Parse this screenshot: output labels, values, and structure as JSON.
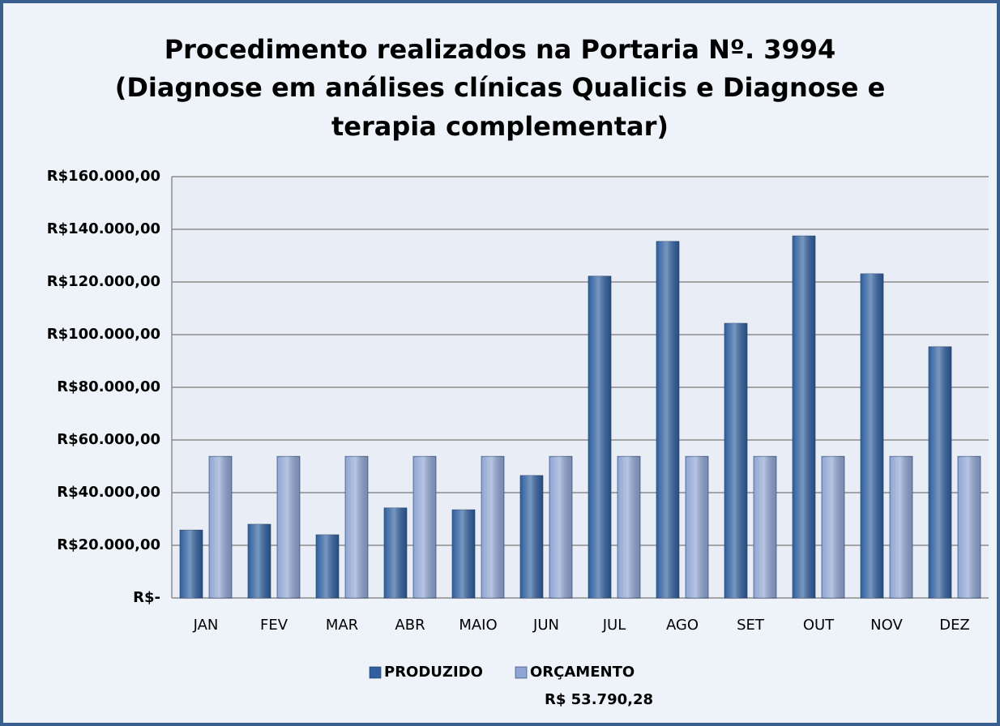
{
  "chart_data": {
    "type": "bar",
    "title": [
      "Procedimento realizados na Portaria Nº. 3994",
      "(Diagnose em análises clínicas Qualicis e Diagnose e",
      "terapia complementar)"
    ],
    "categories": [
      "JAN",
      "FEV",
      "MAR",
      "ABR",
      "MAIO",
      "JUN",
      "JUL",
      "AGO",
      "SET",
      "OUT",
      "NOV",
      "DEZ"
    ],
    "series": [
      {
        "name": "PRODUZIDO",
        "color": "#2f5f9e",
        "values": [
          25800,
          28000,
          24000,
          34200,
          33500,
          46500,
          122200,
          135400,
          104300,
          137500,
          123100,
          95400
        ]
      },
      {
        "name": "ORÇAMENTO",
        "legend_sublabel": "R$ 53.790,28",
        "color": "#8fa5d3",
        "values": [
          53790.28,
          53790.28,
          53790.28,
          53790.28,
          53790.28,
          53790.28,
          53790.28,
          53790.28,
          53790.28,
          53790.28,
          53790.28,
          53790.28
        ]
      }
    ],
    "ylim": [
      0,
      160000
    ],
    "yticks": [
      {
        "value": 0,
        "label": "R$-"
      },
      {
        "value": 20000,
        "label": "R$20.000,00"
      },
      {
        "value": 40000,
        "label": "R$40.000,00"
      },
      {
        "value": 60000,
        "label": "R$60.000,00"
      },
      {
        "value": 80000,
        "label": "R$80.000,00"
      },
      {
        "value": 100000,
        "label": "R$100.000,00"
      },
      {
        "value": 120000,
        "label": "R$120.000,00"
      },
      {
        "value": 140000,
        "label": "R$140.000,00"
      },
      {
        "value": 160000,
        "label": "R$160.000,00"
      }
    ],
    "grid": true,
    "legend": "bottom"
  }
}
